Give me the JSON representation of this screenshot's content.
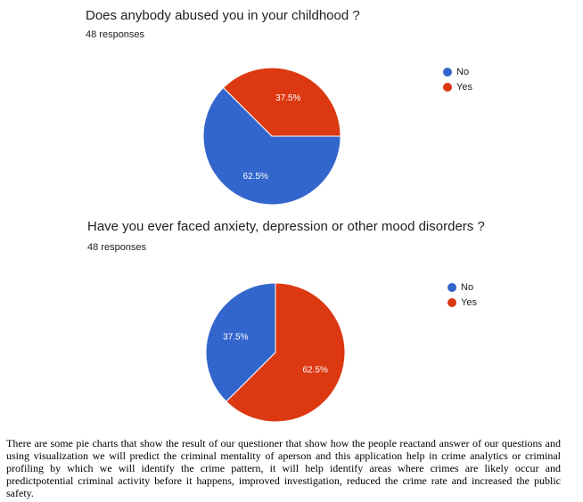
{
  "chart_data": [
    {
      "type": "pie",
      "title": "Does anybody abused you in your childhood ?",
      "subtitle": "48 responses",
      "categories": [
        "No",
        "Yes"
      ],
      "values": [
        62.5,
        37.5
      ],
      "labels": [
        "62.5%",
        "37.5%"
      ],
      "colors": [
        "#3366cc",
        "#dc3912"
      ],
      "legend": "right"
    },
    {
      "type": "pie",
      "title": "Have you ever faced anxiety, depression or other mood disorders ?",
      "subtitle": "48 responses",
      "categories": [
        "No",
        "Yes"
      ],
      "values": [
        37.5,
        62.5
      ],
      "labels": [
        "37.5%",
        "62.5%"
      ],
      "colors": [
        "#3366cc",
        "#dc3912"
      ],
      "legend": "right"
    }
  ],
  "caption": "There are some pie charts that show the result of our questioner that show how the people reactand answer of our questions and using visualization we will predict the criminal mentality of aperson and this application help in crime analytics or criminal profiling by which we will identify the crime pattern, it will help identify areas where crimes are likely occur and predictpotential criminal activity before it happens, improved investigation, reduced the crime rate and increased the public safety."
}
